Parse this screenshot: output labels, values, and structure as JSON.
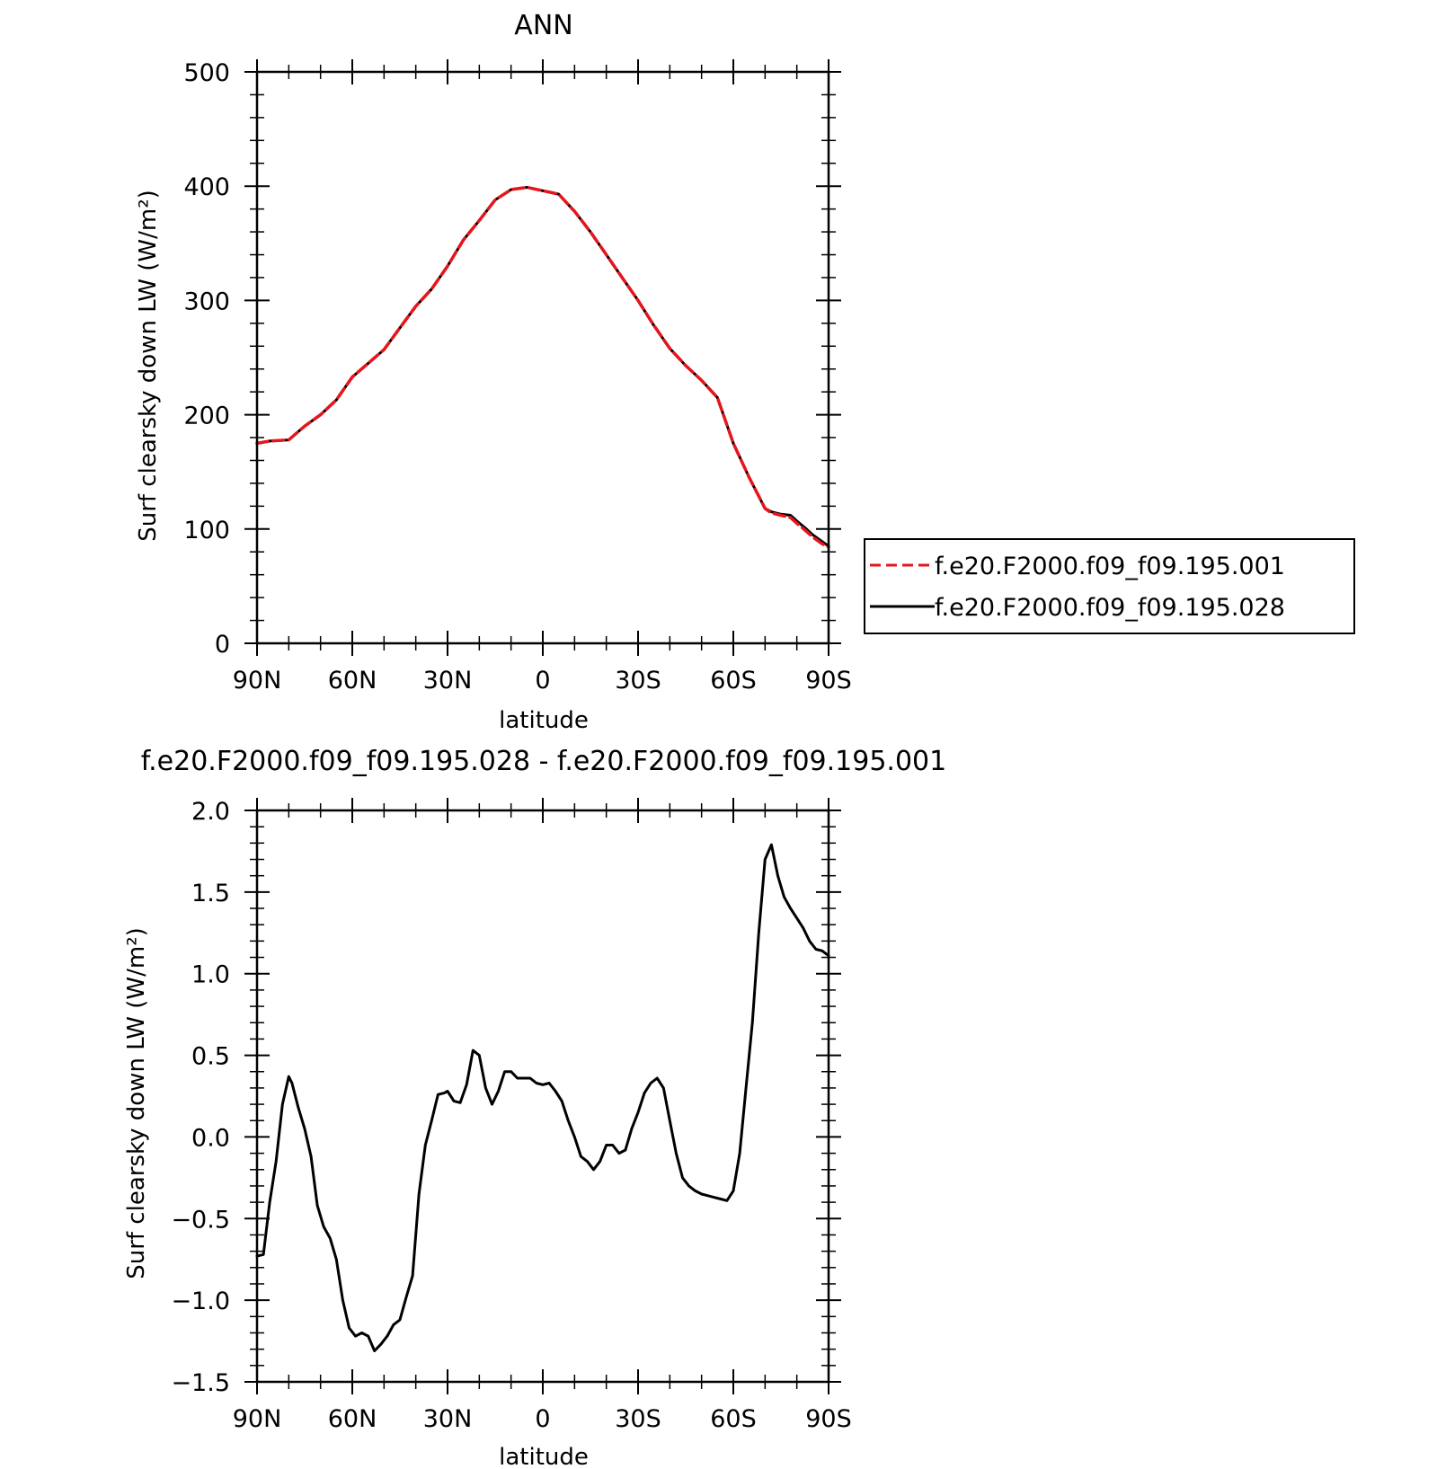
{
  "chart_data": [
    {
      "type": "line",
      "title": "ANN",
      "xlabel": "latitude",
      "ylabel": "Surf clearsky down LW (W/m²)",
      "xlim": [
        90,
        -90
      ],
      "ylim": [
        0,
        500
      ],
      "x_ticks": [
        {
          "value": 90,
          "label": "90N"
        },
        {
          "value": 60,
          "label": "60N"
        },
        {
          "value": 30,
          "label": "30N"
        },
        {
          "value": 0,
          "label": "0"
        },
        {
          "value": -30,
          "label": "30S"
        },
        {
          "value": -60,
          "label": "60S"
        },
        {
          "value": -90,
          "label": "90S"
        }
      ],
      "y_ticks": [
        {
          "value": 0,
          "label": "0"
        },
        {
          "value": 100,
          "label": "100"
        },
        {
          "value": 200,
          "label": "200"
        },
        {
          "value": 300,
          "label": "300"
        },
        {
          "value": 400,
          "label": "400"
        },
        {
          "value": 500,
          "label": "500"
        }
      ],
      "legend": {
        "placement": "right"
      },
      "series": [
        {
          "name": "f.e20.F2000.f09_f09.195.001",
          "color": "#e8141b",
          "style": "dashed",
          "x": [
            90,
            86,
            80,
            75,
            70,
            65,
            60,
            55,
            50,
            45,
            40,
            35,
            30,
            25,
            20,
            15,
            10,
            5,
            0,
            -5,
            -10,
            -15,
            -20,
            -25,
            -30,
            -35,
            -40,
            -45,
            -50,
            -55,
            -60,
            -65,
            -70,
            -72,
            -75,
            -78,
            -80,
            -83,
            -85,
            -88,
            -90
          ],
          "values": [
            175,
            177,
            178,
            190,
            200,
            213,
            233,
            245,
            257,
            276,
            295,
            310,
            330,
            353,
            370,
            388,
            397,
            399,
            396,
            393,
            378,
            360,
            340,
            320,
            300,
            278,
            258,
            243,
            230,
            215,
            175,
            145,
            118,
            114,
            112,
            110,
            105,
            98,
            93,
            87,
            84
          ]
        },
        {
          "name": "f.e20.F2000.f09_f09.195.028",
          "color": "#000000",
          "style": "solid",
          "x": [
            90,
            86,
            80,
            75,
            70,
            65,
            60,
            55,
            50,
            45,
            40,
            35,
            30,
            25,
            20,
            15,
            10,
            5,
            0,
            -5,
            -10,
            -15,
            -20,
            -25,
            -30,
            -35,
            -40,
            -45,
            -50,
            -55,
            -60,
            -65,
            -70,
            -72,
            -75,
            -78,
            -80,
            -83,
            -85,
            -88,
            -90
          ],
          "values": [
            175,
            177,
            178,
            190,
            200,
            213,
            233,
            245,
            257,
            276,
            295,
            310,
            330,
            353,
            370,
            388,
            397,
            399,
            396,
            393,
            378,
            360,
            340,
            320,
            300,
            278,
            258,
            243,
            230,
            215,
            175,
            145,
            118,
            115,
            113,
            112,
            107,
            100,
            95,
            89,
            85
          ]
        }
      ]
    },
    {
      "type": "line",
      "title": "f.e20.F2000.f09_f09.195.028 - f.e20.F2000.f09_f09.195.001",
      "xlabel": "latitude",
      "ylabel": "Surf clearsky down LW (W/m²)",
      "xlim": [
        90,
        -90
      ],
      "ylim": [
        -1.5,
        2.0
      ],
      "x_ticks": [
        {
          "value": 90,
          "label": "90N"
        },
        {
          "value": 60,
          "label": "60N"
        },
        {
          "value": 30,
          "label": "30N"
        },
        {
          "value": 0,
          "label": "0"
        },
        {
          "value": -30,
          "label": "30S"
        },
        {
          "value": -60,
          "label": "60S"
        },
        {
          "value": -90,
          "label": "90S"
        }
      ],
      "y_ticks": [
        {
          "value": -1.5,
          "label": "−1.5"
        },
        {
          "value": -1.0,
          "label": "−1.0"
        },
        {
          "value": -0.5,
          "label": "−0.5"
        },
        {
          "value": 0.0,
          "label": "0.0"
        },
        {
          "value": 0.5,
          "label": "0.5"
        },
        {
          "value": 1.0,
          "label": "1.0"
        },
        {
          "value": 1.5,
          "label": "1.5"
        },
        {
          "value": 2.0,
          "label": "2.0"
        }
      ],
      "series": [
        {
          "color": "#000000",
          "style": "solid",
          "x": [
            90,
            88,
            86,
            84,
            82,
            80,
            79,
            77,
            75,
            73,
            71,
            69,
            67,
            65,
            63,
            61,
            59,
            57,
            55,
            53,
            51,
            49,
            47,
            45,
            43,
            41,
            39,
            37,
            35,
            33,
            31,
            30,
            28,
            26,
            24,
            22,
            20,
            18,
            16,
            14,
            12,
            10,
            8,
            6,
            4,
            2,
            0,
            -2,
            -4,
            -6,
            -8,
            -10,
            -12,
            -14,
            -16,
            -18,
            -20,
            -22,
            -24,
            -26,
            -28,
            -30,
            -32,
            -34,
            -36,
            -38,
            -40,
            -42,
            -44,
            -46,
            -48,
            -50,
            -52,
            -54,
            -56,
            -58,
            -60,
            -62,
            -64,
            -66,
            -68,
            -70,
            -72,
            -74,
            -76,
            -78,
            -80,
            -82,
            -84,
            -86,
            -88,
            -90
          ],
          "values": [
            -0.73,
            -0.72,
            -0.4,
            -0.15,
            0.2,
            0.37,
            0.33,
            0.18,
            0.05,
            -0.12,
            -0.42,
            -0.55,
            -0.62,
            -0.75,
            -1.0,
            -1.17,
            -1.22,
            -1.2,
            -1.22,
            -1.31,
            -1.27,
            -1.22,
            -1.15,
            -1.12,
            -0.98,
            -0.85,
            -0.35,
            -0.05,
            0.1,
            0.26,
            0.27,
            0.28,
            0.22,
            0.21,
            0.32,
            0.53,
            0.5,
            0.3,
            0.2,
            0.28,
            0.4,
            0.4,
            0.36,
            0.36,
            0.36,
            0.33,
            0.32,
            0.33,
            0.28,
            0.22,
            0.1,
            0.0,
            -0.12,
            -0.15,
            -0.2,
            -0.15,
            -0.05,
            -0.05,
            -0.1,
            -0.08,
            0.05,
            0.15,
            0.27,
            0.33,
            0.36,
            0.3,
            0.1,
            -0.1,
            -0.25,
            -0.3,
            -0.33,
            -0.35,
            -0.36,
            -0.37,
            -0.38,
            -0.39,
            -0.33,
            -0.1,
            0.3,
            0.7,
            1.25,
            1.7,
            1.79,
            1.6,
            1.47,
            1.4,
            1.34,
            1.28,
            1.2,
            1.15,
            1.14,
            1.11
          ]
        }
      ]
    }
  ]
}
